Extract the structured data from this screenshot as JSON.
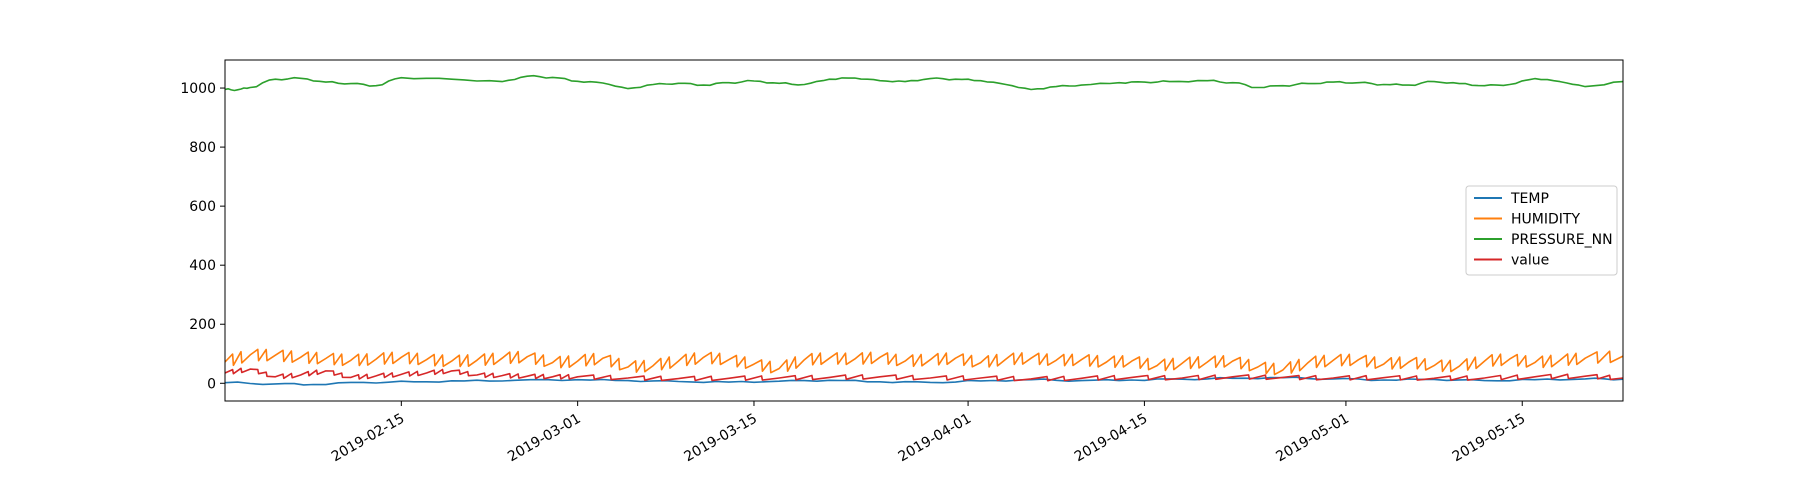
{
  "chart_data": {
    "type": "line",
    "title": "",
    "xlabel": "",
    "ylabel": "",
    "x_axis": {
      "kind": "date",
      "range": [
        "2019-02-01",
        "2019-05-23"
      ],
      "ticks": [
        "2019-02-15",
        "2019-03-01",
        "2019-03-15",
        "2019-04-01",
        "2019-04-15",
        "2019-05-01",
        "2019-05-15"
      ]
    },
    "y_axis": {
      "range": [
        -60,
        1095
      ],
      "ticks": [
        0,
        200,
        400,
        600,
        800,
        1000
      ]
    },
    "grid": false,
    "legend": {
      "placement": "center-right"
    },
    "series": [
      {
        "name": "TEMP",
        "color": "#1f77b4",
        "shape": "smooth",
        "x": [
          "2019-02-01",
          "2019-02-05",
          "2019-02-08",
          "2019-02-12",
          "2019-02-16",
          "2019-02-20",
          "2019-02-24",
          "2019-03-01",
          "2019-03-05",
          "2019-03-09",
          "2019-03-13",
          "2019-03-17",
          "2019-03-21",
          "2019-03-25",
          "2019-03-29",
          "2019-04-02",
          "2019-04-06",
          "2019-04-10",
          "2019-04-14",
          "2019-04-18",
          "2019-04-22",
          "2019-04-26",
          "2019-04-30",
          "2019-05-04",
          "2019-05-08",
          "2019-05-12",
          "2019-05-16",
          "2019-05-20",
          "2019-05-23"
        ],
        "values": [
          2,
          -2,
          -4,
          3,
          5,
          8,
          10,
          12,
          9,
          6,
          4,
          7,
          10,
          5,
          3,
          8,
          12,
          9,
          11,
          14,
          17,
          19,
          15,
          11,
          13,
          9,
          12,
          15,
          14
        ]
      },
      {
        "name": "HUMIDITY",
        "color": "#ff7f0e",
        "shape": "sawtooth",
        "x": [
          "2019-02-01",
          "2019-02-03",
          "2019-02-05",
          "2019-02-07",
          "2019-02-09",
          "2019-02-11",
          "2019-02-13",
          "2019-02-15",
          "2019-02-17",
          "2019-02-19",
          "2019-02-21",
          "2019-02-23",
          "2019-02-25",
          "2019-02-27",
          "2019-03-01",
          "2019-03-03",
          "2019-03-05",
          "2019-03-07",
          "2019-03-09",
          "2019-03-11",
          "2019-03-13",
          "2019-03-15",
          "2019-03-17",
          "2019-03-19",
          "2019-03-21",
          "2019-03-23",
          "2019-03-25",
          "2019-03-27",
          "2019-03-29",
          "2019-03-31",
          "2019-04-02",
          "2019-04-04",
          "2019-04-06",
          "2019-04-08",
          "2019-04-10",
          "2019-04-12",
          "2019-04-14",
          "2019-04-16",
          "2019-04-18",
          "2019-04-20",
          "2019-04-22",
          "2019-04-24",
          "2019-04-26",
          "2019-04-28",
          "2019-04-30",
          "2019-05-02",
          "2019-05-04",
          "2019-05-06",
          "2019-05-08",
          "2019-05-10",
          "2019-05-12",
          "2019-05-14",
          "2019-05-16",
          "2019-05-18",
          "2019-05-20",
          "2019-05-23"
        ],
        "values": [
          72,
          96,
          95,
          88,
          84,
          78,
          82,
          88,
          80,
          75,
          78,
          85,
          90,
          70,
          75,
          85,
          55,
          60,
          75,
          88,
          80,
          65,
          50,
          80,
          85,
          82,
          88,
          75,
          80,
          85,
          70,
          82,
          85,
          78,
          80,
          72,
          75,
          60,
          68,
          72,
          75,
          55,
          45,
          70,
          78,
          80,
          65,
          72,
          60,
          58,
          75,
          82,
          70,
          78,
          85,
          92
        ]
      },
      {
        "name": "PRESSURE_NN",
        "color": "#2ca02c",
        "shape": "smooth",
        "x": [
          "2019-02-01",
          "2019-02-02",
          "2019-02-03",
          "2019-02-05",
          "2019-02-07",
          "2019-02-09",
          "2019-02-11",
          "2019-02-13",
          "2019-02-15",
          "2019-02-19",
          "2019-02-23",
          "2019-02-25",
          "2019-02-27",
          "2019-03-01",
          "2019-03-03",
          "2019-03-05",
          "2019-03-07",
          "2019-03-09",
          "2019-03-11",
          "2019-03-13",
          "2019-03-15",
          "2019-03-17",
          "2019-03-19",
          "2019-03-21",
          "2019-03-23",
          "2019-03-25",
          "2019-03-27",
          "2019-03-29",
          "2019-03-31",
          "2019-04-02",
          "2019-04-04",
          "2019-04-06",
          "2019-04-08",
          "2019-04-10",
          "2019-04-13",
          "2019-04-15",
          "2019-04-17",
          "2019-04-20",
          "2019-04-22",
          "2019-04-24",
          "2019-04-26",
          "2019-04-28",
          "2019-04-30",
          "2019-05-02",
          "2019-05-04",
          "2019-05-06",
          "2019-05-08",
          "2019-05-10",
          "2019-05-12",
          "2019-05-14",
          "2019-05-16",
          "2019-05-18",
          "2019-05-20",
          "2019-05-23"
        ],
        "values": [
          995,
          994,
          1002,
          1030,
          1033,
          1020,
          1015,
          1008,
          1035,
          1030,
          1022,
          1040,
          1036,
          1023,
          1017,
          998,
          1012,
          1016,
          1010,
          1018,
          1024,
          1016,
          1012,
          1030,
          1034,
          1025,
          1022,
          1032,
          1030,
          1025,
          1012,
          995,
          1005,
          1010,
          1018,
          1020,
          1022,
          1025,
          1018,
          1002,
          1008,
          1015,
          1020,
          1018,
          1012,
          1010,
          1022,
          1015,
          1008,
          1012,
          1032,
          1022,
          1005,
          1022
        ]
      },
      {
        "name": "value",
        "color": "#d62728",
        "shape": "sawtooth",
        "x": [
          "2019-02-01",
          "2019-02-03",
          "2019-02-05",
          "2019-02-07",
          "2019-02-09",
          "2019-02-11",
          "2019-02-13",
          "2019-02-15",
          "2019-02-17",
          "2019-02-19",
          "2019-02-21",
          "2019-02-23",
          "2019-02-25",
          "2019-02-27",
          "2019-03-01",
          "2019-03-05",
          "2019-03-09",
          "2019-03-13",
          "2019-03-17",
          "2019-03-21",
          "2019-03-25",
          "2019-03-29",
          "2019-04-02",
          "2019-04-06",
          "2019-04-10",
          "2019-04-14",
          "2019-04-18",
          "2019-04-22",
          "2019-04-26",
          "2019-04-30",
          "2019-05-04",
          "2019-05-08",
          "2019-05-12",
          "2019-05-16",
          "2019-05-20",
          "2019-05-23"
        ],
        "values": [
          35,
          48,
          22,
          28,
          42,
          20,
          25,
          30,
          35,
          42,
          28,
          26,
          24,
          22,
          22,
          18,
          16,
          17,
          18,
          20,
          22,
          18,
          18,
          15,
          17,
          20,
          18,
          22,
          20,
          18,
          19,
          17,
          18,
          22,
          24,
          18
        ]
      }
    ]
  }
}
